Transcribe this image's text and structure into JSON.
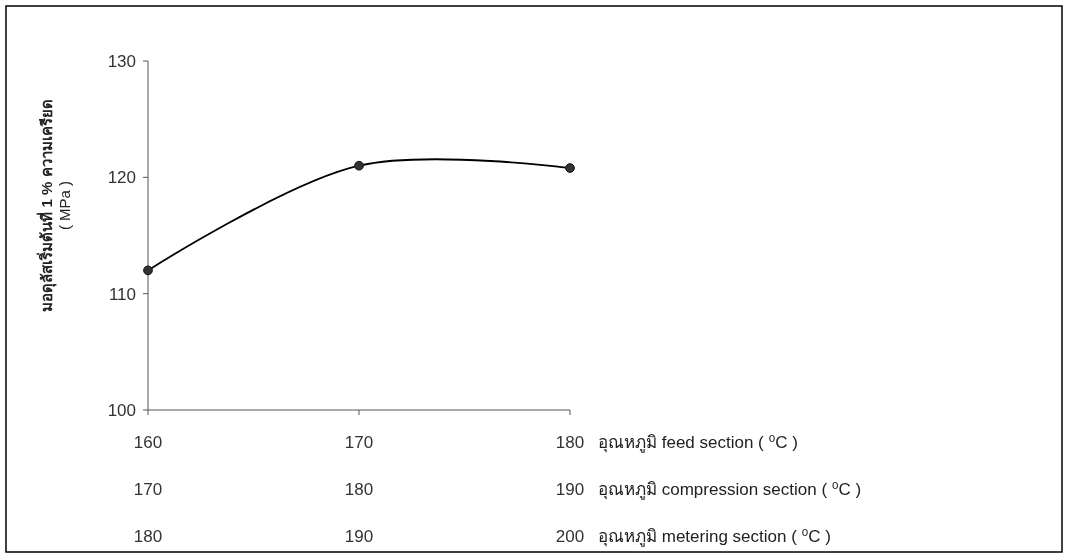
{
  "chart_data": {
    "type": "line",
    "ylabel": "มอดุลัสเริ่มต้นที่ 1 % ความเครียด\n( MPa )",
    "x": [
      160,
      170,
      180
    ],
    "series": [
      {
        "color": "#000000",
        "values": [
          112,
          121,
          120.8
        ]
      }
    ],
    "xlim": [
      160,
      180
    ],
    "xticks": [
      160,
      170,
      180
    ],
    "xlabel": "อุณหภูมิ feed section ( ⁰C )",
    "x2lim": [
      170,
      190
    ],
    "x2ticks": [
      170,
      180,
      190
    ],
    "x2label": "อุณหภูมิ compression section ( ⁰C )",
    "annotations": [
      "180",
      "190",
      "200",
      "อุณหภูมิ metering section ( ⁰C )"
    ],
    "ylim": [
      100,
      130
    ],
    "yticks": [
      100,
      110,
      120,
      130
    ],
    "marker": "circle",
    "grid": false
  }
}
